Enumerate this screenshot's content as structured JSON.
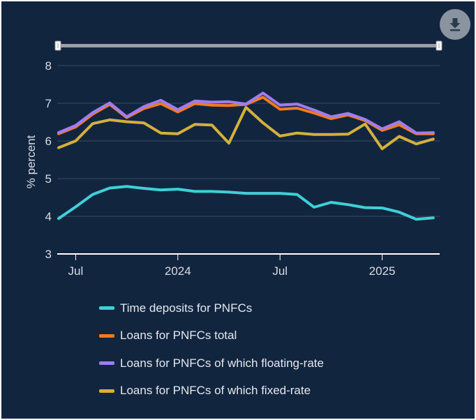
{
  "chart_data": {
    "type": "line",
    "title": "",
    "xlabel": "",
    "ylabel": "% percent",
    "ylim": [
      3,
      8
    ],
    "yticks": [
      3,
      4,
      5,
      6,
      7,
      8
    ],
    "x_start": "2023-06",
    "x_ticks": [
      {
        "label": "Jul",
        "month_index": 1
      },
      {
        "label": "2024",
        "month_index": 7
      },
      {
        "label": "Jul",
        "month_index": 13
      },
      {
        "label": "2025",
        "month_index": 19
      }
    ],
    "grid": true,
    "legend_position": "bottom",
    "series": [
      {
        "name": "Time deposits for PNFCs",
        "color": "#3fd0d6",
        "values": [
          3.94,
          4.25,
          4.58,
          4.75,
          4.79,
          4.74,
          4.7,
          4.72,
          4.66,
          4.66,
          4.64,
          4.61,
          4.61,
          4.61,
          4.58,
          4.24,
          4.37,
          4.31,
          4.23,
          4.22,
          4.11,
          3.92,
          3.96
        ]
      },
      {
        "name": "Loans for PNFCs total",
        "color": "#f37b1f",
        "values": [
          6.19,
          6.37,
          6.71,
          6.97,
          6.62,
          6.86,
          6.99,
          6.77,
          6.99,
          6.95,
          6.94,
          6.97,
          7.16,
          6.84,
          6.87,
          6.74,
          6.59,
          6.69,
          6.54,
          6.28,
          6.43,
          6.19,
          6.19
        ]
      },
      {
        "name": "Loans for PNFCs of which floating-rate",
        "color": "#a07cf2",
        "values": [
          6.22,
          6.41,
          6.75,
          7.01,
          6.64,
          6.91,
          7.08,
          6.83,
          7.06,
          7.03,
          7.04,
          6.98,
          7.27,
          6.95,
          6.98,
          6.82,
          6.64,
          6.73,
          6.57,
          6.32,
          6.51,
          6.21,
          6.22
        ]
      },
      {
        "name": "Loans for PNFCs of which fixed-rate",
        "color": "#d4b03c",
        "values": [
          5.82,
          6.0,
          6.46,
          6.56,
          6.51,
          6.48,
          6.21,
          6.19,
          6.44,
          6.42,
          5.94,
          6.89,
          6.48,
          6.13,
          6.21,
          6.17,
          6.17,
          6.18,
          6.45,
          5.79,
          6.12,
          5.92,
          6.05
        ]
      }
    ]
  },
  "colors": {
    "background": "#12253f",
    "gridline": "#3a4a62",
    "axis": "#ffffff",
    "navigator_track": "#9aa0a6",
    "download_button_bg": "#8a94a1"
  },
  "toolbar": {
    "download_icon": "download-icon"
  }
}
